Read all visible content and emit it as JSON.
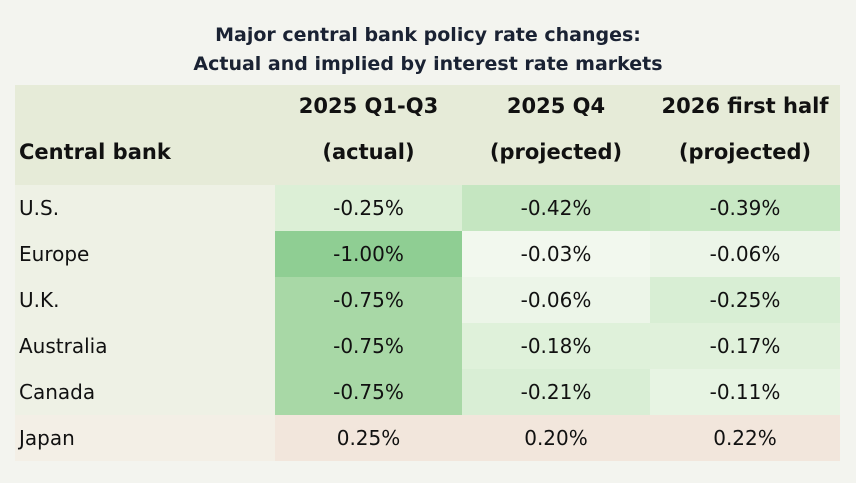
{
  "header": {
    "title": [
      "Major central bank policy rate changes:",
      "Actual and implied by interest rate markets"
    ]
  },
  "table": {
    "columns": [
      [
        "Central bank"
      ],
      [
        "2025 Q1-Q3",
        "(actual)"
      ],
      [
        "2025 Q4",
        "(projected)"
      ],
      [
        "2026 first half",
        "(projected)"
      ]
    ],
    "rows": [
      [
        "U.S.",
        "-0.25%",
        "-0.42%",
        "-0.39%"
      ],
      [
        "Europe",
        "-1.00%",
        "-0.03%",
        "-0.06%"
      ],
      [
        "U.K.",
        "-0.75%",
        "-0.06%",
        "-0.25%"
      ],
      [
        "Australia",
        "-0.75%",
        "-0.18%",
        "-0.17%"
      ],
      [
        "Canada",
        "-0.75%",
        "-0.21%",
        "-0.11%"
      ],
      [
        "Japan",
        "0.25%",
        "0.20%",
        "0.22%"
      ]
    ]
  }
}
